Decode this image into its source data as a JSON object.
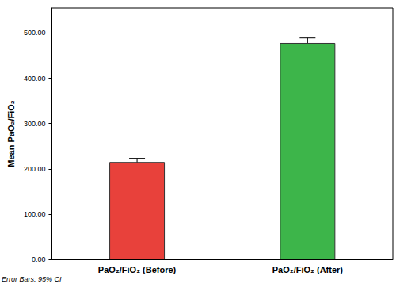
{
  "chart_data": {
    "type": "bar",
    "categories": [
      "PaO₂/FiO₂ (Before)",
      "PaO₂/FiO₂ (After)"
    ],
    "values": [
      215,
      478
    ],
    "ci_low": [
      207,
      468
    ],
    "ci_high": [
      223,
      489
    ],
    "colors": [
      "#e8413b",
      "#3db54a"
    ],
    "y_label": "Mean PaO₂/FiO₂",
    "footnote": "Error Bars: 95% CI",
    "ylim": [
      0,
      555
    ],
    "yticks": [
      {
        "value": 0,
        "label": "0.00"
      },
      {
        "value": 100,
        "label": "100.00"
      },
      {
        "value": 200,
        "label": "200.00"
      },
      {
        "value": 300,
        "label": "300.00"
      },
      {
        "value": 400,
        "label": "400.00"
      },
      {
        "value": 500,
        "label": "500.00"
      }
    ],
    "grid": false
  }
}
